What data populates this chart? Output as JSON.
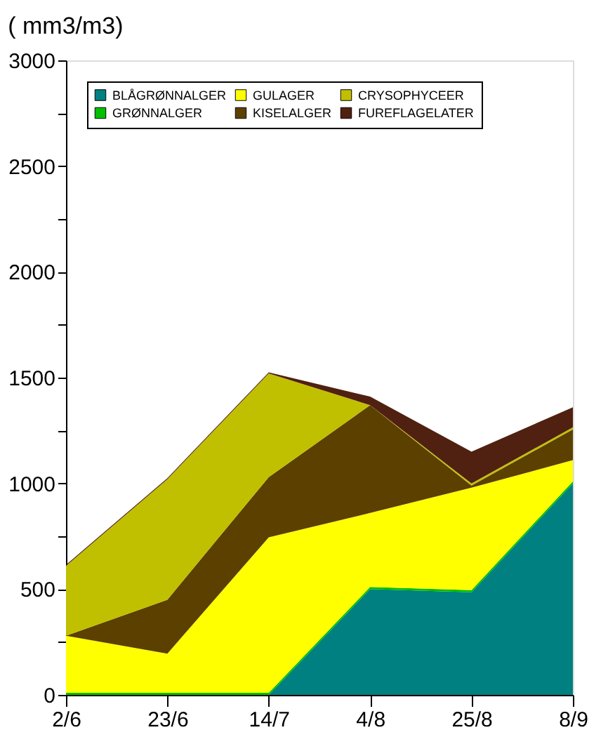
{
  "chart_data": {
    "type": "area",
    "title": "( mm3/m3)",
    "stacked": true,
    "categories": [
      "2/6",
      "23/6",
      "14/7",
      "4/8",
      "25/8",
      "8/9"
    ],
    "series": [
      {
        "name": "BLÅGRØNNALGER",
        "color": "#008080",
        "values": [
          0,
          0,
          0,
          500,
          485,
          1000
        ]
      },
      {
        "name": "GRØNNALGER",
        "color": "#00c000",
        "values": [
          10,
          10,
          10,
          10,
          10,
          10
        ]
      },
      {
        "name": "GULAGER",
        "color": "#ffff00",
        "values": [
          270,
          185,
          735,
          350,
          485,
          100
        ]
      },
      {
        "name": "KISELALGER",
        "color": "#5c4000",
        "values": [
          0,
          255,
          285,
          510,
          10,
          145
        ]
      },
      {
        "name": "CRYSOPHYCEER",
        "color": "#c0c000",
        "values": [
          330,
          570,
          490,
          0,
          10,
          10
        ]
      },
      {
        "name": "FUREFLAGELATER",
        "color": "#502010",
        "values": [
          5,
          5,
          5,
          40,
          150,
          95
        ]
      }
    ],
    "ylim": [
      0,
      3000
    ],
    "yticks": [
      0,
      {
        "value": 250,
        "label": null
      },
      500,
      {
        "value": 750,
        "label": null
      },
      1000,
      {
        "value": 1250,
        "label": null
      },
      1500,
      {
        "value": 1750,
        "label": null
      },
      2000,
      {
        "value": 2250,
        "label": null
      },
      2500,
      {
        "value": 2750,
        "label": null
      },
      3000
    ],
    "grid": false,
    "legend": "top left"
  }
}
